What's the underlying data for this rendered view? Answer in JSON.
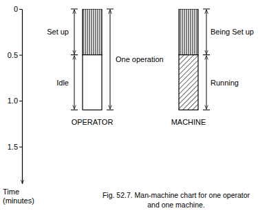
{
  "chart_data": {
    "type": "bar",
    "stacked": true,
    "title": "Fig. 52.7. Man-machine chart for one operator and one machine.",
    "y_label": "Time (minutes)",
    "categories": [
      "OPERATOR",
      "MACHINE"
    ],
    "series": [
      {
        "labels": [
          "Set up",
          "Being Set up"
        ],
        "values": [
          0.5,
          0.5
        ]
      },
      {
        "labels": [
          "Idle",
          "Running"
        ],
        "values": [
          0.6,
          0.6
        ]
      }
    ],
    "annotations": [
      {
        "text": "One operation",
        "y": [
          0,
          1.1
        ]
      }
    ],
    "ylim": [
      0,
      1.9
    ],
    "yticks": [
      0,
      0.5,
      {
        "value": 1,
        "label": "1.0"
      },
      1.5
    ]
  }
}
